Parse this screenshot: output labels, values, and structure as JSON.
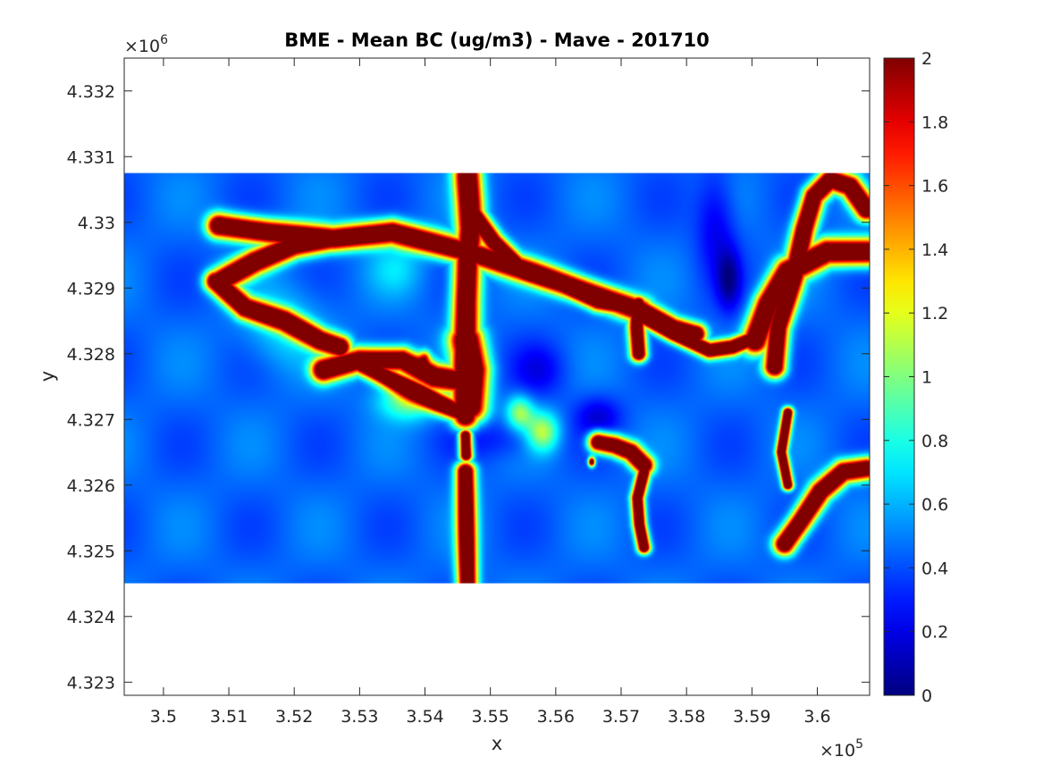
{
  "chart_data": {
    "type": "heatmap",
    "title": "BME - Mean BC (ug/m3) -  Mave - 201710",
    "xlabel": "x",
    "ylabel": "y",
    "x_multiplier": "×10",
    "x_exponent": "5",
    "y_multiplier": "×10",
    "y_exponent": "6",
    "xlim": [
      3.494,
      3.608
    ],
    "ylim": [
      4.3228,
      4.3325
    ],
    "x_ticks": [
      3.5,
      3.51,
      3.52,
      3.53,
      3.54,
      3.55,
      3.56,
      3.57,
      3.58,
      3.59,
      3.6
    ],
    "x_tick_labels": [
      "3.5",
      "3.51",
      "3.52",
      "3.53",
      "3.54",
      "3.55",
      "3.56",
      "3.57",
      "3.58",
      "3.59",
      "3.6"
    ],
    "y_ticks": [
      4.323,
      4.324,
      4.325,
      4.326,
      4.327,
      4.328,
      4.329,
      4.33,
      4.331,
      4.332
    ],
    "y_tick_labels": [
      "4.323",
      "4.324",
      "4.325",
      "4.326",
      "4.327",
      "4.328",
      "4.329",
      "4.33",
      "4.331",
      "4.332"
    ],
    "data_extent": {
      "x": [
        3.494,
        3.608
      ],
      "y": [
        4.3245,
        4.33075
      ]
    },
    "colorbar": {
      "colormap": "jet",
      "range": [
        0,
        2
      ],
      "ticks": [
        0,
        0.2,
        0.4,
        0.6,
        0.8,
        1,
        1.2,
        1.4,
        1.6,
        1.8,
        2
      ],
      "tick_labels": [
        "0",
        "0.2",
        "0.4",
        "0.6",
        "0.8",
        "1",
        "1.2",
        "1.4",
        "1.6",
        "1.8",
        "2"
      ]
    },
    "background_level": 0.45,
    "roads": [
      {
        "width": 0.00022,
        "points": [
          [
            3.5085,
            4.32995
          ],
          [
            3.516,
            4.32985
          ],
          [
            3.526,
            4.32975
          ],
          [
            3.535,
            4.32985
          ],
          [
            3.5465,
            4.32955
          ],
          [
            3.556,
            4.32925
          ],
          [
            3.566,
            4.3289
          ],
          [
            3.573,
            4.32865
          ]
        ]
      },
      {
        "width": 0.00022,
        "points": [
          [
            3.5085,
            4.3291
          ],
          [
            3.514,
            4.3294
          ],
          [
            3.52,
            4.32965
          ],
          [
            3.5255,
            4.32975
          ]
        ]
      },
      {
        "width": 0.0002,
        "points": [
          [
            3.508,
            4.3291
          ],
          [
            3.5125,
            4.3287
          ],
          [
            3.5185,
            4.3285
          ],
          [
            3.524,
            4.3282
          ],
          [
            3.527,
            4.3281
          ]
        ]
      },
      {
        "width": 0.00022,
        "points": [
          [
            3.5245,
            4.32775
          ],
          [
            3.53,
            4.3279
          ],
          [
            3.5365,
            4.3279
          ],
          [
            3.5415,
            4.32765
          ],
          [
            3.5445,
            4.3276
          ]
        ]
      },
      {
        "width": 0.00018,
        "points": [
          [
            3.53,
            4.32785
          ],
          [
            3.536,
            4.32755
          ],
          [
            3.542,
            4.32725
          ],
          [
            3.5455,
            4.3271
          ]
        ]
      },
      {
        "width": 0.00024,
        "points": [
          [
            3.5465,
            4.3307
          ],
          [
            3.5468,
            4.3303
          ],
          [
            3.547,
            4.3299
          ],
          [
            3.5465,
            4.3294
          ],
          [
            3.5463,
            4.3288
          ],
          [
            3.5462,
            4.3282
          ],
          [
            3.5461,
            4.3277
          ],
          [
            3.5462,
            4.32705
          ]
        ]
      },
      {
        "width": 0.0003,
        "points": [
          [
            3.5463,
            4.3282
          ],
          [
            3.5472,
            4.32775
          ],
          [
            3.5468,
            4.3272
          ]
        ]
      },
      {
        "width": 0.00012,
        "points": [
          [
            3.5462,
            4.32675
          ],
          [
            3.5463,
            4.32645
          ]
        ]
      },
      {
        "width": 0.00018,
        "points": [
          [
            3.5462,
            4.3262
          ],
          [
            3.5463,
            4.3256
          ],
          [
            3.5464,
            4.325
          ],
          [
            3.5465,
            4.3245
          ]
        ]
      },
      {
        "width": 0.00018,
        "points": [
          [
            3.5465,
            4.33025
          ],
          [
            3.5505,
            4.3297
          ],
          [
            3.555,
            4.32925
          ],
          [
            3.561,
            4.32905
          ],
          [
            3.5665,
            4.3288
          ],
          [
            3.5725,
            4.3287
          ],
          [
            3.578,
            4.3284
          ],
          [
            3.5815,
            4.3283
          ]
        ]
      },
      {
        "width": 0.00015,
        "points": [
          [
            3.5726,
            4.32875
          ],
          [
            3.5724,
            4.3284
          ],
          [
            3.5727,
            4.328
          ]
        ]
      },
      {
        "width": 0.00015,
        "points": [
          [
            3.5735,
            4.32855
          ],
          [
            3.578,
            4.3283
          ],
          [
            3.5835,
            4.32805
          ],
          [
            3.587,
            4.3281
          ],
          [
            3.5895,
            4.3282
          ]
        ]
      },
      {
        "width": 0.00024,
        "points": [
          [
            3.5905,
            4.3282
          ],
          [
            3.5925,
            4.32875
          ],
          [
            3.5955,
            4.32925
          ],
          [
            3.6015,
            4.32955
          ],
          [
            3.6075,
            4.32955
          ]
        ]
      },
      {
        "width": 0.0002,
        "points": [
          [
            3.5935,
            4.3278
          ],
          [
            3.594,
            4.3284
          ],
          [
            3.5965,
            4.3292
          ],
          [
            3.598,
            4.3299
          ],
          [
            3.5995,
            4.3304
          ],
          [
            3.602,
            4.33065
          ],
          [
            3.605,
            4.33055
          ],
          [
            3.6075,
            4.3302
          ]
        ]
      },
      {
        "width": 0.00018,
        "points": [
          [
            3.5665,
            4.32665
          ],
          [
            3.569,
            4.3266
          ],
          [
            3.5715,
            4.3265
          ],
          [
            3.5735,
            4.3263
          ]
        ]
      },
      {
        "width": 0.00012,
        "points": [
          [
            3.5735,
            4.3262
          ],
          [
            3.5725,
            4.3258
          ],
          [
            3.5728,
            4.3254
          ],
          [
            3.5735,
            4.32505
          ]
        ]
      },
      {
        "width": 0.0002,
        "points": [
          [
            3.595,
            4.3251
          ],
          [
            3.5975,
            4.32545
          ],
          [
            3.6005,
            4.3259
          ],
          [
            3.604,
            4.3262
          ],
          [
            3.6075,
            4.32625
          ]
        ]
      },
      {
        "width": 0.0001,
        "points": [
          [
            3.5955,
            4.3271
          ],
          [
            3.5945,
            4.3265
          ],
          [
            3.5955,
            4.326
          ]
        ]
      }
    ],
    "hotspots": [
      {
        "x": 3.5865,
        "y": 4.32912,
        "rx": 0.0018,
        "ry": 0.00045,
        "value": -0.35
      },
      {
        "x": 3.5845,
        "y": 4.33,
        "rx": 0.003,
        "ry": 0.0008,
        "value": -0.25
      },
      {
        "x": 3.5665,
        "y": 4.32705,
        "rx": 0.0035,
        "ry": 0.0003,
        "value": -0.25
      },
      {
        "x": 3.5575,
        "y": 4.32775,
        "rx": 0.004,
        "ry": 0.0004,
        "value": -0.2
      },
      {
        "x": 3.558,
        "y": 4.3268,
        "rx": 0.0025,
        "ry": 0.0003,
        "value": 0.7
      },
      {
        "x": 3.5545,
        "y": 4.3271,
        "rx": 0.002,
        "ry": 0.00025,
        "value": 0.6
      },
      {
        "x": 3.5375,
        "y": 4.3273,
        "rx": 0.0045,
        "ry": 0.0003,
        "value": 0.6
      },
      {
        "x": 3.5185,
        "y": 4.3284,
        "rx": 0.006,
        "ry": 0.0006,
        "value": 0.25
      },
      {
        "x": 3.5355,
        "y": 4.3293,
        "rx": 0.004,
        "ry": 0.0004,
        "value": 0.2
      },
      {
        "x": 3.54,
        "y": 4.32795,
        "rx": 0.0008,
        "ry": 0.0001,
        "value": 0.8
      },
      {
        "x": 3.5655,
        "y": 4.32635,
        "rx": 0.0005,
        "ry": 7e-05,
        "value": 2.0
      },
      {
        "x": 3.552,
        "y": 4.3267,
        "rx": 0.008,
        "ry": 0.0003,
        "value": -0.15
      }
    ]
  }
}
